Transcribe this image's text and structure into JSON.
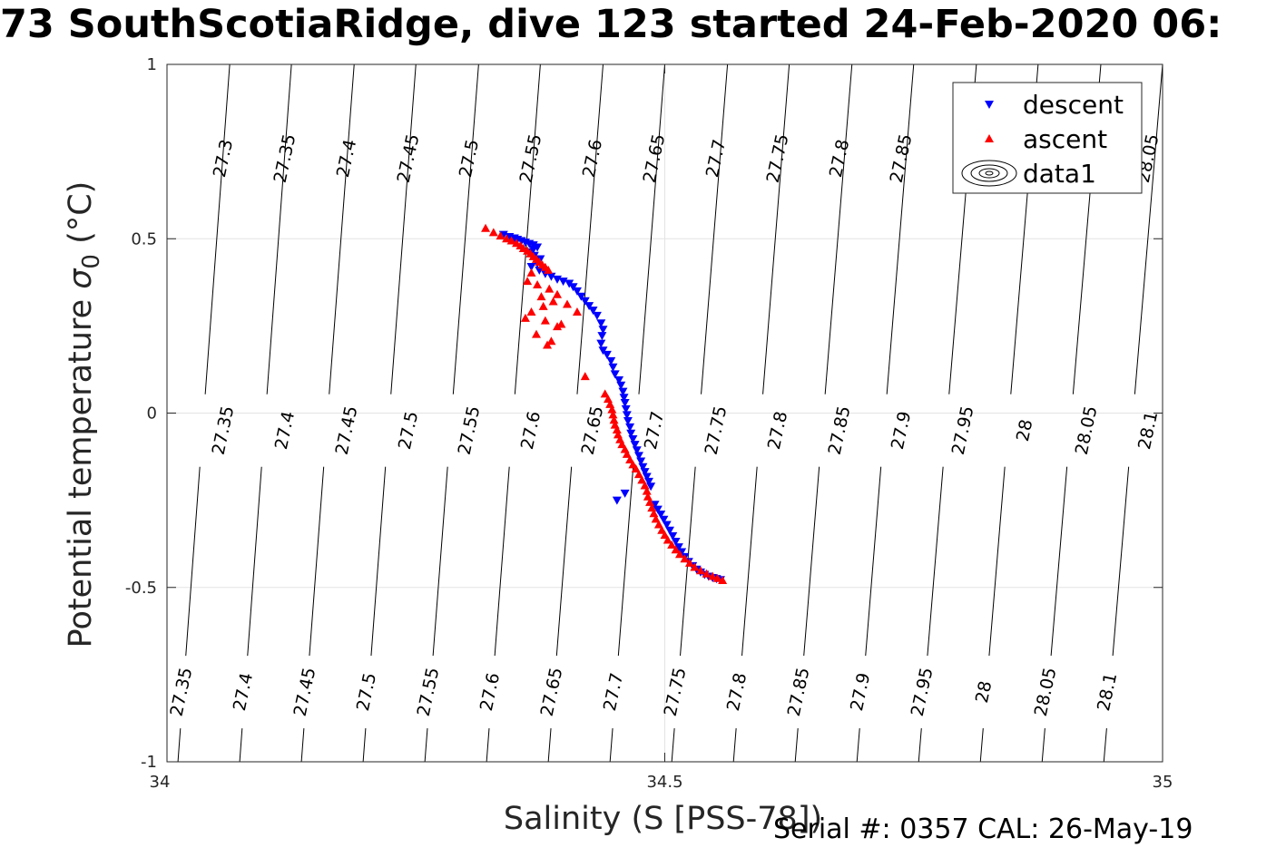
{
  "chart_data": {
    "type": "scatter",
    "title": "73 SouthScotiaRidge, dive 123 started 24-Feb-2020 06:",
    "xlabel": "Salinity (S [PSS-78])",
    "ylabel_main": "Potential temperature ",
    "ylabel_sigma": "σ",
    "ylabel_sub": "0",
    "ylabel_unit": " (°C)",
    "xlim": [
      34,
      35
    ],
    "ylim": [
      -1,
      1
    ],
    "x_ticks": [
      34,
      34.5,
      35
    ],
    "x_tick_labels": [
      "34",
      "34.5",
      "35"
    ],
    "y_ticks": [
      1,
      0.5,
      0,
      -0.5,
      -1
    ],
    "y_tick_labels": [
      "1",
      "0.5",
      "0",
      "-0.5",
      "-1"
    ],
    "grid": true,
    "legend": {
      "placement": "top-right",
      "entries": [
        {
          "label": "descent",
          "marker": "triangle-down",
          "color": "#0000ff"
        },
        {
          "label": "ascent",
          "marker": "triangle-up",
          "color": "#ff0000"
        },
        {
          "label": "data1",
          "marker": "contour",
          "color": "#000000"
        }
      ]
    },
    "contours": {
      "color": "#000000",
      "levels": [
        {
          "label": "27.3",
          "x_at_top": 34.0,
          "x_at_bottom": 33.885
        },
        {
          "label": "27.35",
          "x_at_top": 34.063,
          "x_at_bottom": 34.011
        },
        {
          "label": "27.4",
          "x_at_top": 34.125,
          "x_at_bottom": 34.073
        },
        {
          "label": "27.45",
          "x_at_top": 34.188,
          "x_at_bottom": 34.135
        },
        {
          "label": "27.5",
          "x_at_top": 34.25,
          "x_at_bottom": 34.197
        },
        {
          "label": "27.55",
          "x_at_top": 34.313,
          "x_at_bottom": 34.259
        },
        {
          "label": "27.6",
          "x_at_top": 34.375,
          "x_at_bottom": 34.321
        },
        {
          "label": "27.65",
          "x_at_top": 34.438,
          "x_at_bottom": 34.383
        },
        {
          "label": "27.7",
          "x_at_top": 34.5,
          "x_at_bottom": 34.445
        },
        {
          "label": "27.75",
          "x_at_top": 34.563,
          "x_at_bottom": 34.507
        },
        {
          "label": "27.8",
          "x_at_top": 34.625,
          "x_at_bottom": 34.569
        },
        {
          "label": "27.85",
          "x_at_top": 34.688,
          "x_at_bottom": 34.631
        },
        {
          "label": "27.9",
          "x_at_top": 34.75,
          "x_at_bottom": 34.693
        },
        {
          "label": "27.95",
          "x_at_top": 34.813,
          "x_at_bottom": 34.755
        },
        {
          "label": "28",
          "x_at_top": 34.875,
          "x_at_bottom": 34.817
        },
        {
          "label": "28.05",
          "x_at_top": 34.938,
          "x_at_bottom": 34.879
        },
        {
          "label": "28.1",
          "x_at_top": 35.0,
          "x_at_bottom": 34.941
        }
      ],
      "label_rows": [
        {
          "theta": 0.73,
          "labels": [
            {
              "text": "27.3",
              "s": 34.057
            },
            {
              "text": "27.35",
              "s": 34.119
            },
            {
              "text": "27.4",
              "s": 34.181
            },
            {
              "text": "27.45",
              "s": 34.243
            },
            {
              "text": "27.5",
              "s": 34.304
            },
            {
              "text": "27.55",
              "s": 34.366
            },
            {
              "text": "27.6",
              "s": 34.428
            },
            {
              "text": "27.65",
              "s": 34.49
            },
            {
              "text": "27.7",
              "s": 34.552
            },
            {
              "text": "27.75",
              "s": 34.614
            },
            {
              "text": "27.8",
              "s": 34.676
            },
            {
              "text": "27.85",
              "s": 34.738
            },
            {
              "text": "28.05",
              "s": 34.986
            }
          ]
        },
        {
          "theta": -0.05,
          "labels": [
            {
              "text": "27.35",
              "s": 34.057
            },
            {
              "text": "27.4",
              "s": 34.119
            },
            {
              "text": "27.45",
              "s": 34.181
            },
            {
              "text": "27.5",
              "s": 34.243
            },
            {
              "text": "27.55",
              "s": 34.304
            },
            {
              "text": "27.6",
              "s": 34.366
            },
            {
              "text": "27.65",
              "s": 34.428
            },
            {
              "text": "27.7",
              "s": 34.49
            },
            {
              "text": "27.75",
              "s": 34.552
            },
            {
              "text": "27.8",
              "s": 34.614
            },
            {
              "text": "27.85",
              "s": 34.676
            },
            {
              "text": "27.9",
              "s": 34.738
            },
            {
              "text": "27.95",
              "s": 34.8
            },
            {
              "text": "28",
              "s": 34.862
            },
            {
              "text": "28.05",
              "s": 34.924
            },
            {
              "text": "28.1",
              "s": 34.986
            }
          ]
        },
        {
          "theta": -0.8,
          "labels": [
            {
              "text": "27.35",
              "s": 34.015
            },
            {
              "text": "27.4",
              "s": 34.077
            },
            {
              "text": "27.45",
              "s": 34.139
            },
            {
              "text": "27.5",
              "s": 34.201
            },
            {
              "text": "27.55",
              "s": 34.263
            },
            {
              "text": "27.6",
              "s": 34.325
            },
            {
              "text": "27.65",
              "s": 34.387
            },
            {
              "text": "27.7",
              "s": 34.449
            },
            {
              "text": "27.75",
              "s": 34.511
            },
            {
              "text": "27.8",
              "s": 34.573
            },
            {
              "text": "27.85",
              "s": 34.635
            },
            {
              "text": "27.9",
              "s": 34.697
            },
            {
              "text": "27.95",
              "s": 34.759
            },
            {
              "text": "28",
              "s": 34.821
            },
            {
              "text": "28.05",
              "s": 34.883
            },
            {
              "text": "28.1",
              "s": 34.945
            }
          ]
        }
      ]
    },
    "series": [
      {
        "name": "descent",
        "marker": "triangle-down",
        "color": "#0000ff",
        "points": [
          [
            34.338,
            0.512
          ],
          [
            34.344,
            0.506
          ],
          [
            34.349,
            0.502
          ],
          [
            34.352,
            0.498
          ],
          [
            34.356,
            0.494
          ],
          [
            34.36,
            0.49
          ],
          [
            34.364,
            0.486
          ],
          [
            34.368,
            0.482
          ],
          [
            34.372,
            0.476
          ],
          [
            34.368,
            0.47
          ],
          [
            34.364,
            0.462
          ],
          [
            34.369,
            0.452
          ],
          [
            34.375,
            0.442
          ],
          [
            34.372,
            0.43
          ],
          [
            34.366,
            0.42
          ],
          [
            34.374,
            0.41
          ],
          [
            34.38,
            0.4
          ],
          [
            34.386,
            0.392
          ],
          [
            34.392,
            0.384
          ],
          [
            34.398,
            0.378
          ],
          [
            34.404,
            0.372
          ],
          [
            34.408,
            0.362
          ],
          [
            34.412,
            0.35
          ],
          [
            34.416,
            0.335
          ],
          [
            34.42,
            0.322
          ],
          [
            34.424,
            0.308
          ],
          [
            34.428,
            0.295
          ],
          [
            34.432,
            0.28
          ],
          [
            34.436,
            0.258
          ],
          [
            34.438,
            0.24
          ],
          [
            34.437,
            0.222
          ],
          [
            34.436,
            0.2
          ],
          [
            34.438,
            0.18
          ],
          [
            34.442,
            0.168
          ],
          [
            34.446,
            0.15
          ],
          [
            34.448,
            0.132
          ],
          [
            34.45,
            0.112
          ],
          [
            34.454,
            0.095
          ],
          [
            34.456,
            0.08
          ],
          [
            34.458,
            0.062
          ],
          [
            34.459,
            0.045
          ],
          [
            34.46,
            0.03
          ],
          [
            34.461,
            0.012
          ],
          [
            34.462,
            -0.005
          ],
          [
            34.463,
            -0.022
          ],
          [
            34.465,
            -0.04
          ],
          [
            34.466,
            -0.058
          ],
          [
            34.468,
            -0.074
          ],
          [
            34.47,
            -0.09
          ],
          [
            34.472,
            -0.106
          ],
          [
            34.474,
            -0.122
          ],
          [
            34.476,
            -0.138
          ],
          [
            34.478,
            -0.154
          ],
          [
            34.48,
            -0.168
          ],
          [
            34.482,
            -0.182
          ],
          [
            34.484,
            -0.196
          ],
          [
            34.486,
            -0.21
          ],
          [
            34.46,
            -0.23
          ],
          [
            34.452,
            -0.25
          ],
          [
            34.49,
            -0.262
          ],
          [
            34.493,
            -0.276
          ],
          [
            34.496,
            -0.29
          ],
          [
            34.499,
            -0.305
          ],
          [
            34.502,
            -0.32
          ],
          [
            34.505,
            -0.336
          ],
          [
            34.508,
            -0.352
          ],
          [
            34.511,
            -0.368
          ],
          [
            34.514,
            -0.384
          ],
          [
            34.517,
            -0.398
          ],
          [
            34.52,
            -0.412
          ],
          [
            34.524,
            -0.426
          ],
          [
            34.528,
            -0.438
          ],
          [
            34.532,
            -0.448
          ],
          [
            34.536,
            -0.456
          ],
          [
            34.54,
            -0.463
          ],
          [
            34.544,
            -0.468
          ],
          [
            34.548,
            -0.472
          ],
          [
            34.552,
            -0.475
          ],
          [
            34.556,
            -0.478
          ]
        ]
      },
      {
        "name": "ascent",
        "marker": "triangle-up",
        "color": "#ff0000",
        "points": [
          [
            34.32,
            0.53
          ],
          [
            34.328,
            0.518
          ],
          [
            34.335,
            0.508
          ],
          [
            34.341,
            0.5
          ],
          [
            34.346,
            0.494
          ],
          [
            34.351,
            0.487
          ],
          [
            34.355,
            0.48
          ],
          [
            34.358,
            0.472
          ],
          [
            34.362,
            0.465
          ],
          [
            34.365,
            0.457
          ],
          [
            34.368,
            0.449
          ],
          [
            34.371,
            0.441
          ],
          [
            34.374,
            0.433
          ],
          [
            34.377,
            0.425
          ],
          [
            34.38,
            0.418
          ],
          [
            34.383,
            0.41
          ],
          [
            34.366,
            0.402
          ],
          [
            34.362,
            0.378
          ],
          [
            34.372,
            0.368
          ],
          [
            34.384,
            0.356
          ],
          [
            34.392,
            0.34
          ],
          [
            34.376,
            0.334
          ],
          [
            34.388,
            0.32
          ],
          [
            34.402,
            0.312
          ],
          [
            34.378,
            0.306
          ],
          [
            34.366,
            0.29
          ],
          [
            34.36,
            0.272
          ],
          [
            34.38,
            0.265
          ],
          [
            34.396,
            0.255
          ],
          [
            34.412,
            0.29
          ],
          [
            34.392,
            0.248
          ],
          [
            34.371,
            0.226
          ],
          [
            34.386,
            0.206
          ],
          [
            34.382,
            0.195
          ],
          [
            34.42,
            0.105
          ],
          [
            34.44,
            0.055
          ],
          [
            34.443,
            0.04
          ],
          [
            34.445,
            0.025
          ],
          [
            34.447,
            0.01
          ],
          [
            34.448,
            -0.005
          ],
          [
            34.449,
            -0.02
          ],
          [
            34.45,
            -0.034
          ],
          [
            34.452,
            -0.048
          ],
          [
            34.453,
            -0.062
          ],
          [
            34.455,
            -0.076
          ],
          [
            34.457,
            -0.09
          ],
          [
            34.46,
            -0.104
          ],
          [
            34.462,
            -0.118
          ],
          [
            34.465,
            -0.134
          ],
          [
            34.468,
            -0.148
          ],
          [
            34.471,
            -0.16
          ],
          [
            34.474,
            -0.176
          ],
          [
            34.477,
            -0.192
          ],
          [
            34.48,
            -0.208
          ],
          [
            34.482,
            -0.224
          ],
          [
            34.483,
            -0.24
          ],
          [
            34.485,
            -0.256
          ],
          [
            34.487,
            -0.272
          ],
          [
            34.489,
            -0.288
          ],
          [
            34.491,
            -0.304
          ],
          [
            34.494,
            -0.32
          ],
          [
            34.497,
            -0.336
          ],
          [
            34.5,
            -0.35
          ],
          [
            34.503,
            -0.364
          ],
          [
            34.507,
            -0.378
          ],
          [
            34.511,
            -0.392
          ],
          [
            34.515,
            -0.405
          ],
          [
            34.52,
            -0.418
          ],
          [
            34.525,
            -0.43
          ],
          [
            34.53,
            -0.442
          ],
          [
            34.536,
            -0.452
          ],
          [
            34.542,
            -0.461
          ],
          [
            34.548,
            -0.468
          ],
          [
            34.553,
            -0.474
          ],
          [
            34.558,
            -0.48
          ]
        ]
      }
    ],
    "footer": "Serial #: 0357  CAL: 26-May-19"
  }
}
